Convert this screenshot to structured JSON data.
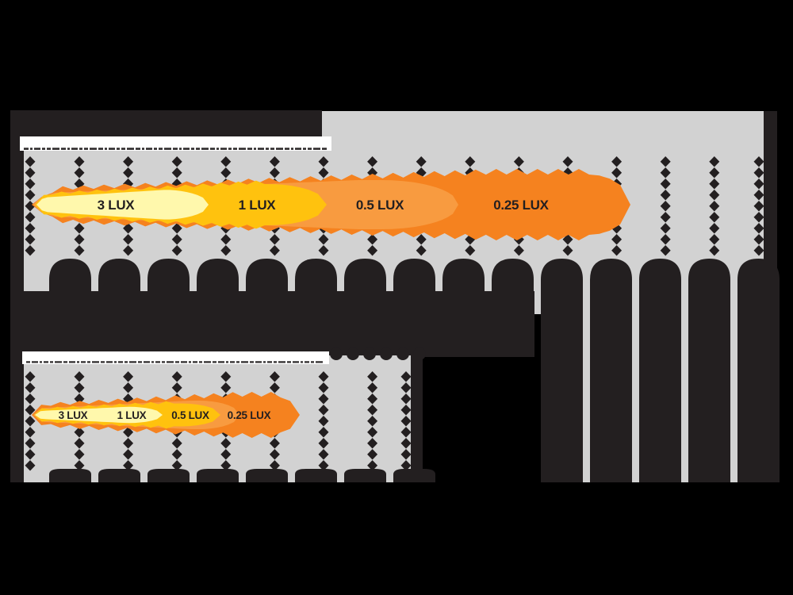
{
  "colors": {
    "background": "#000000",
    "panel": "#d2d2d2",
    "ink": "#231f20",
    "strip": "#ffffff",
    "microtext": "#2e2b2c",
    "beam_outer": "#f5821f",
    "beam_mid": "#f89b40",
    "beam_gold": "#ffc20e",
    "beam_core": "#fff8ac"
  },
  "charts": [
    {
      "id": "top-beam-chart",
      "labels": [
        "3 LUX",
        "1 LUX",
        "0.5 LUX",
        "0.25 LUX"
      ]
    },
    {
      "id": "bottom-beam-chart",
      "labels": [
        "3 LUX",
        "1 LUX",
        "0.5 LUX",
        "0.25 LUX"
      ]
    }
  ],
  "chart_data": {
    "type": "area",
    "title": "",
    "series": [
      {
        "name": "top-beam",
        "zones": [
          {
            "label": "3 LUX",
            "lux": 3
          },
          {
            "label": "1 LUX",
            "lux": 1
          },
          {
            "label": "0.5 LUX",
            "lux": 0.5
          },
          {
            "label": "0.25 LUX",
            "lux": 0.25
          }
        ],
        "relative_reach": 1.0
      },
      {
        "name": "bottom-beam",
        "zones": [
          {
            "label": "3 LUX",
            "lux": 3
          },
          {
            "label": "1 LUX",
            "lux": 1
          },
          {
            "label": "0.5 LUX",
            "lux": 0.5
          },
          {
            "label": "0.25 LUX",
            "lux": 0.25
          }
        ],
        "relative_reach": 0.47
      }
    ],
    "legend_position": "none",
    "grid": "diamond-tick-columns"
  }
}
